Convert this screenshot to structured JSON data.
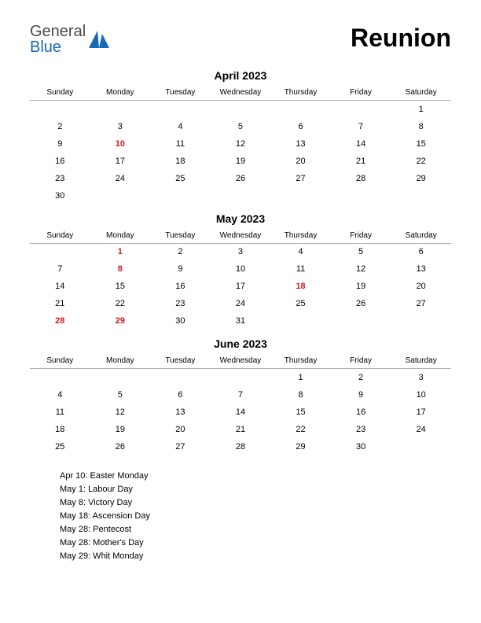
{
  "brand": {
    "word1": "General",
    "word2": "Blue"
  },
  "page_title": "Reunion",
  "colors": {
    "text": "#000000",
    "holiday": "#d11919",
    "divider": "#b0b0b0",
    "logo_gray": "#4a4a4a",
    "logo_blue": "#1868b8",
    "logo_icon": "#1868b8",
    "background": "#ffffff"
  },
  "fonts": {
    "title_size_pt": 32,
    "month_title_size_pt": 14,
    "dayname_size_pt": 10,
    "cell_size_pt": 11,
    "holiday_list_size_pt": 11
  },
  "day_names": [
    "Sunday",
    "Monday",
    "Tuesday",
    "Wednesday",
    "Thursday",
    "Friday",
    "Saturday"
  ],
  "months": [
    {
      "title": "April 2023",
      "weeks": [
        [
          {
            "d": ""
          },
          {
            "d": ""
          },
          {
            "d": ""
          },
          {
            "d": ""
          },
          {
            "d": ""
          },
          {
            "d": ""
          },
          {
            "d": "1"
          }
        ],
        [
          {
            "d": "2"
          },
          {
            "d": "3"
          },
          {
            "d": "4"
          },
          {
            "d": "5"
          },
          {
            "d": "6"
          },
          {
            "d": "7"
          },
          {
            "d": "8"
          }
        ],
        [
          {
            "d": "9"
          },
          {
            "d": "10",
            "h": true
          },
          {
            "d": "11"
          },
          {
            "d": "12"
          },
          {
            "d": "13"
          },
          {
            "d": "14"
          },
          {
            "d": "15"
          }
        ],
        [
          {
            "d": "16"
          },
          {
            "d": "17"
          },
          {
            "d": "18"
          },
          {
            "d": "19"
          },
          {
            "d": "20"
          },
          {
            "d": "21"
          },
          {
            "d": "22"
          }
        ],
        [
          {
            "d": "23"
          },
          {
            "d": "24"
          },
          {
            "d": "25"
          },
          {
            "d": "26"
          },
          {
            "d": "27"
          },
          {
            "d": "28"
          },
          {
            "d": "29"
          }
        ],
        [
          {
            "d": "30"
          },
          {
            "d": ""
          },
          {
            "d": ""
          },
          {
            "d": ""
          },
          {
            "d": ""
          },
          {
            "d": ""
          },
          {
            "d": ""
          }
        ]
      ]
    },
    {
      "title": "May 2023",
      "weeks": [
        [
          {
            "d": ""
          },
          {
            "d": "1",
            "h": true
          },
          {
            "d": "2"
          },
          {
            "d": "3"
          },
          {
            "d": "4"
          },
          {
            "d": "5"
          },
          {
            "d": "6"
          }
        ],
        [
          {
            "d": "7"
          },
          {
            "d": "8",
            "h": true
          },
          {
            "d": "9"
          },
          {
            "d": "10"
          },
          {
            "d": "11"
          },
          {
            "d": "12"
          },
          {
            "d": "13"
          }
        ],
        [
          {
            "d": "14"
          },
          {
            "d": "15"
          },
          {
            "d": "16"
          },
          {
            "d": "17"
          },
          {
            "d": "18",
            "h": true
          },
          {
            "d": "19"
          },
          {
            "d": "20"
          }
        ],
        [
          {
            "d": "21"
          },
          {
            "d": "22"
          },
          {
            "d": "23"
          },
          {
            "d": "24"
          },
          {
            "d": "25"
          },
          {
            "d": "26"
          },
          {
            "d": "27"
          }
        ],
        [
          {
            "d": "28",
            "h": true
          },
          {
            "d": "29",
            "h": true
          },
          {
            "d": "30"
          },
          {
            "d": "31"
          },
          {
            "d": ""
          },
          {
            "d": ""
          },
          {
            "d": ""
          }
        ]
      ]
    },
    {
      "title": "June 2023",
      "weeks": [
        [
          {
            "d": ""
          },
          {
            "d": ""
          },
          {
            "d": ""
          },
          {
            "d": ""
          },
          {
            "d": "1"
          },
          {
            "d": "2"
          },
          {
            "d": "3"
          }
        ],
        [
          {
            "d": "4"
          },
          {
            "d": "5"
          },
          {
            "d": "6"
          },
          {
            "d": "7"
          },
          {
            "d": "8"
          },
          {
            "d": "9"
          },
          {
            "d": "10"
          }
        ],
        [
          {
            "d": "11"
          },
          {
            "d": "12"
          },
          {
            "d": "13"
          },
          {
            "d": "14"
          },
          {
            "d": "15"
          },
          {
            "d": "16"
          },
          {
            "d": "17"
          }
        ],
        [
          {
            "d": "18"
          },
          {
            "d": "19"
          },
          {
            "d": "20"
          },
          {
            "d": "21"
          },
          {
            "d": "22"
          },
          {
            "d": "23"
          },
          {
            "d": "24"
          }
        ],
        [
          {
            "d": "25"
          },
          {
            "d": "26"
          },
          {
            "d": "27"
          },
          {
            "d": "28"
          },
          {
            "d": "29"
          },
          {
            "d": "30"
          },
          {
            "d": ""
          }
        ]
      ]
    }
  ],
  "holiday_list": [
    "Apr 10: Easter Monday",
    "May 1: Labour Day",
    "May 8: Victory Day",
    "May 18: Ascension Day",
    "May 28: Pentecost",
    "May 28: Mother's Day",
    "May 29: Whit Monday"
  ]
}
